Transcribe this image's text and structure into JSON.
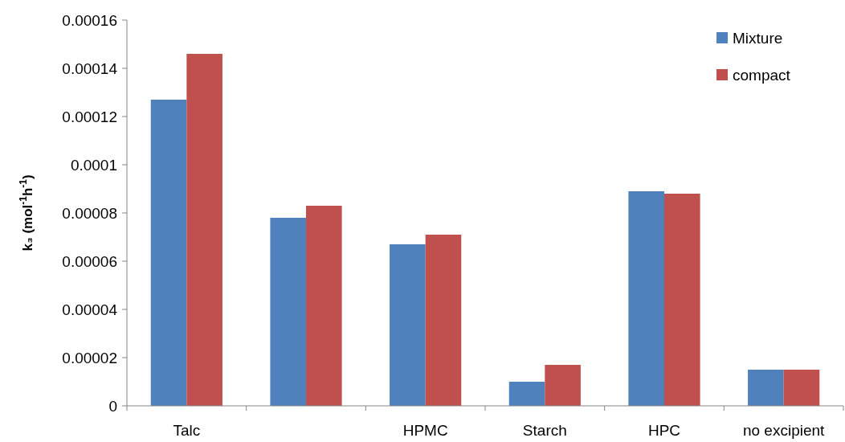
{
  "chart_data": {
    "type": "bar",
    "ylabel": "k₃ (mol$^{-1}$h$^{-1}$)",
    "categories": [
      "Talc",
      null,
      "HPMC",
      "Starch",
      "HPC",
      "no excipient"
    ],
    "series": [
      {
        "name": "Mixture",
        "color": "#4f81bd",
        "values": [
          0.000127,
          7.8e-05,
          6.7e-05,
          1e-05,
          8.9e-05,
          1.5e-05
        ]
      },
      {
        "name": "compact",
        "color": "#c0504d",
        "values": [
          0.000146,
          8.3e-05,
          7.1e-05,
          1.7e-05,
          8.8e-05,
          1.5e-05
        ]
      }
    ],
    "ylim": [
      0,
      0.00016
    ],
    "yticks": [
      0,
      {
        "value": 2e-05,
        "label": "0.00002"
      },
      {
        "value": 4e-05,
        "label": "0.00004"
      },
      {
        "value": 6e-05,
        "label": "0.00006"
      },
      {
        "value": 8e-05,
        "label": "0.00008"
      },
      0.0001,
      0.00012,
      0.00014,
      0.00016
    ],
    "grid": false,
    "legend": "top right"
  }
}
